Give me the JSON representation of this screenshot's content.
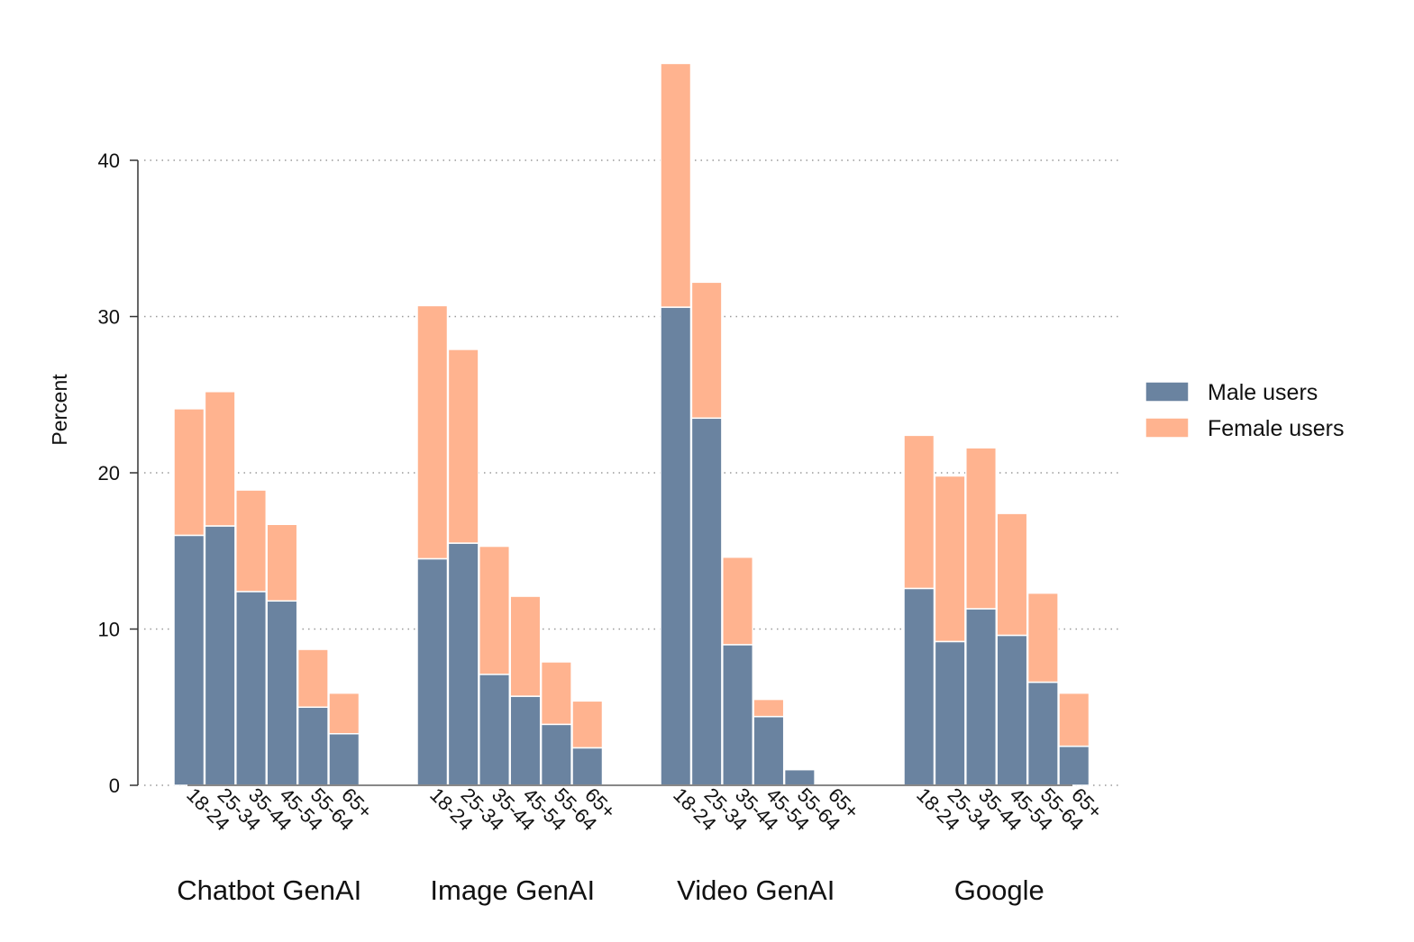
{
  "chart_data": {
    "type": "bar",
    "stacked": true,
    "ylabel": "Percent",
    "ylim": [
      0,
      40
    ],
    "yticks": [
      0,
      10,
      20,
      30,
      40
    ],
    "grid": true,
    "legend_position": "right",
    "groups": [
      {
        "name": "Chatbot GenAI",
        "categories": [
          "18-24",
          "25-34",
          "35-44",
          "45-54",
          "55-64",
          "65+"
        ],
        "male": [
          16.0,
          16.6,
          12.4,
          11.8,
          5.0,
          3.3
        ],
        "female": [
          8.1,
          8.6,
          6.5,
          4.9,
          3.7,
          2.6
        ]
      },
      {
        "name": "Image GenAI",
        "categories": [
          "18-24",
          "25-34",
          "35-44",
          "45-54",
          "55-64",
          "65+"
        ],
        "male": [
          14.5,
          15.5,
          7.1,
          5.7,
          3.9,
          2.4
        ],
        "female": [
          16.2,
          12.4,
          8.2,
          6.4,
          4.0,
          3.0
        ]
      },
      {
        "name": "Video GenAI",
        "categories": [
          "18-24",
          "25-34",
          "35-44",
          "45-54",
          "55-64",
          "65+"
        ],
        "male": [
          30.6,
          23.5,
          9.0,
          4.4,
          1.0,
          0
        ],
        "female": [
          15.6,
          8.7,
          5.6,
          1.1,
          0,
          0
        ]
      },
      {
        "name": "Google",
        "categories": [
          "18-24",
          "25-34",
          "35-44",
          "45-54",
          "55-64",
          "65+"
        ],
        "male": [
          12.6,
          9.2,
          11.3,
          9.6,
          6.6,
          2.5
        ],
        "female": [
          9.8,
          10.6,
          10.3,
          7.8,
          5.7,
          3.4
        ]
      }
    ],
    "series": [
      {
        "name": "Male users",
        "color": "#6a83a0"
      },
      {
        "name": "Female users",
        "color": "#ffb38f"
      }
    ]
  }
}
